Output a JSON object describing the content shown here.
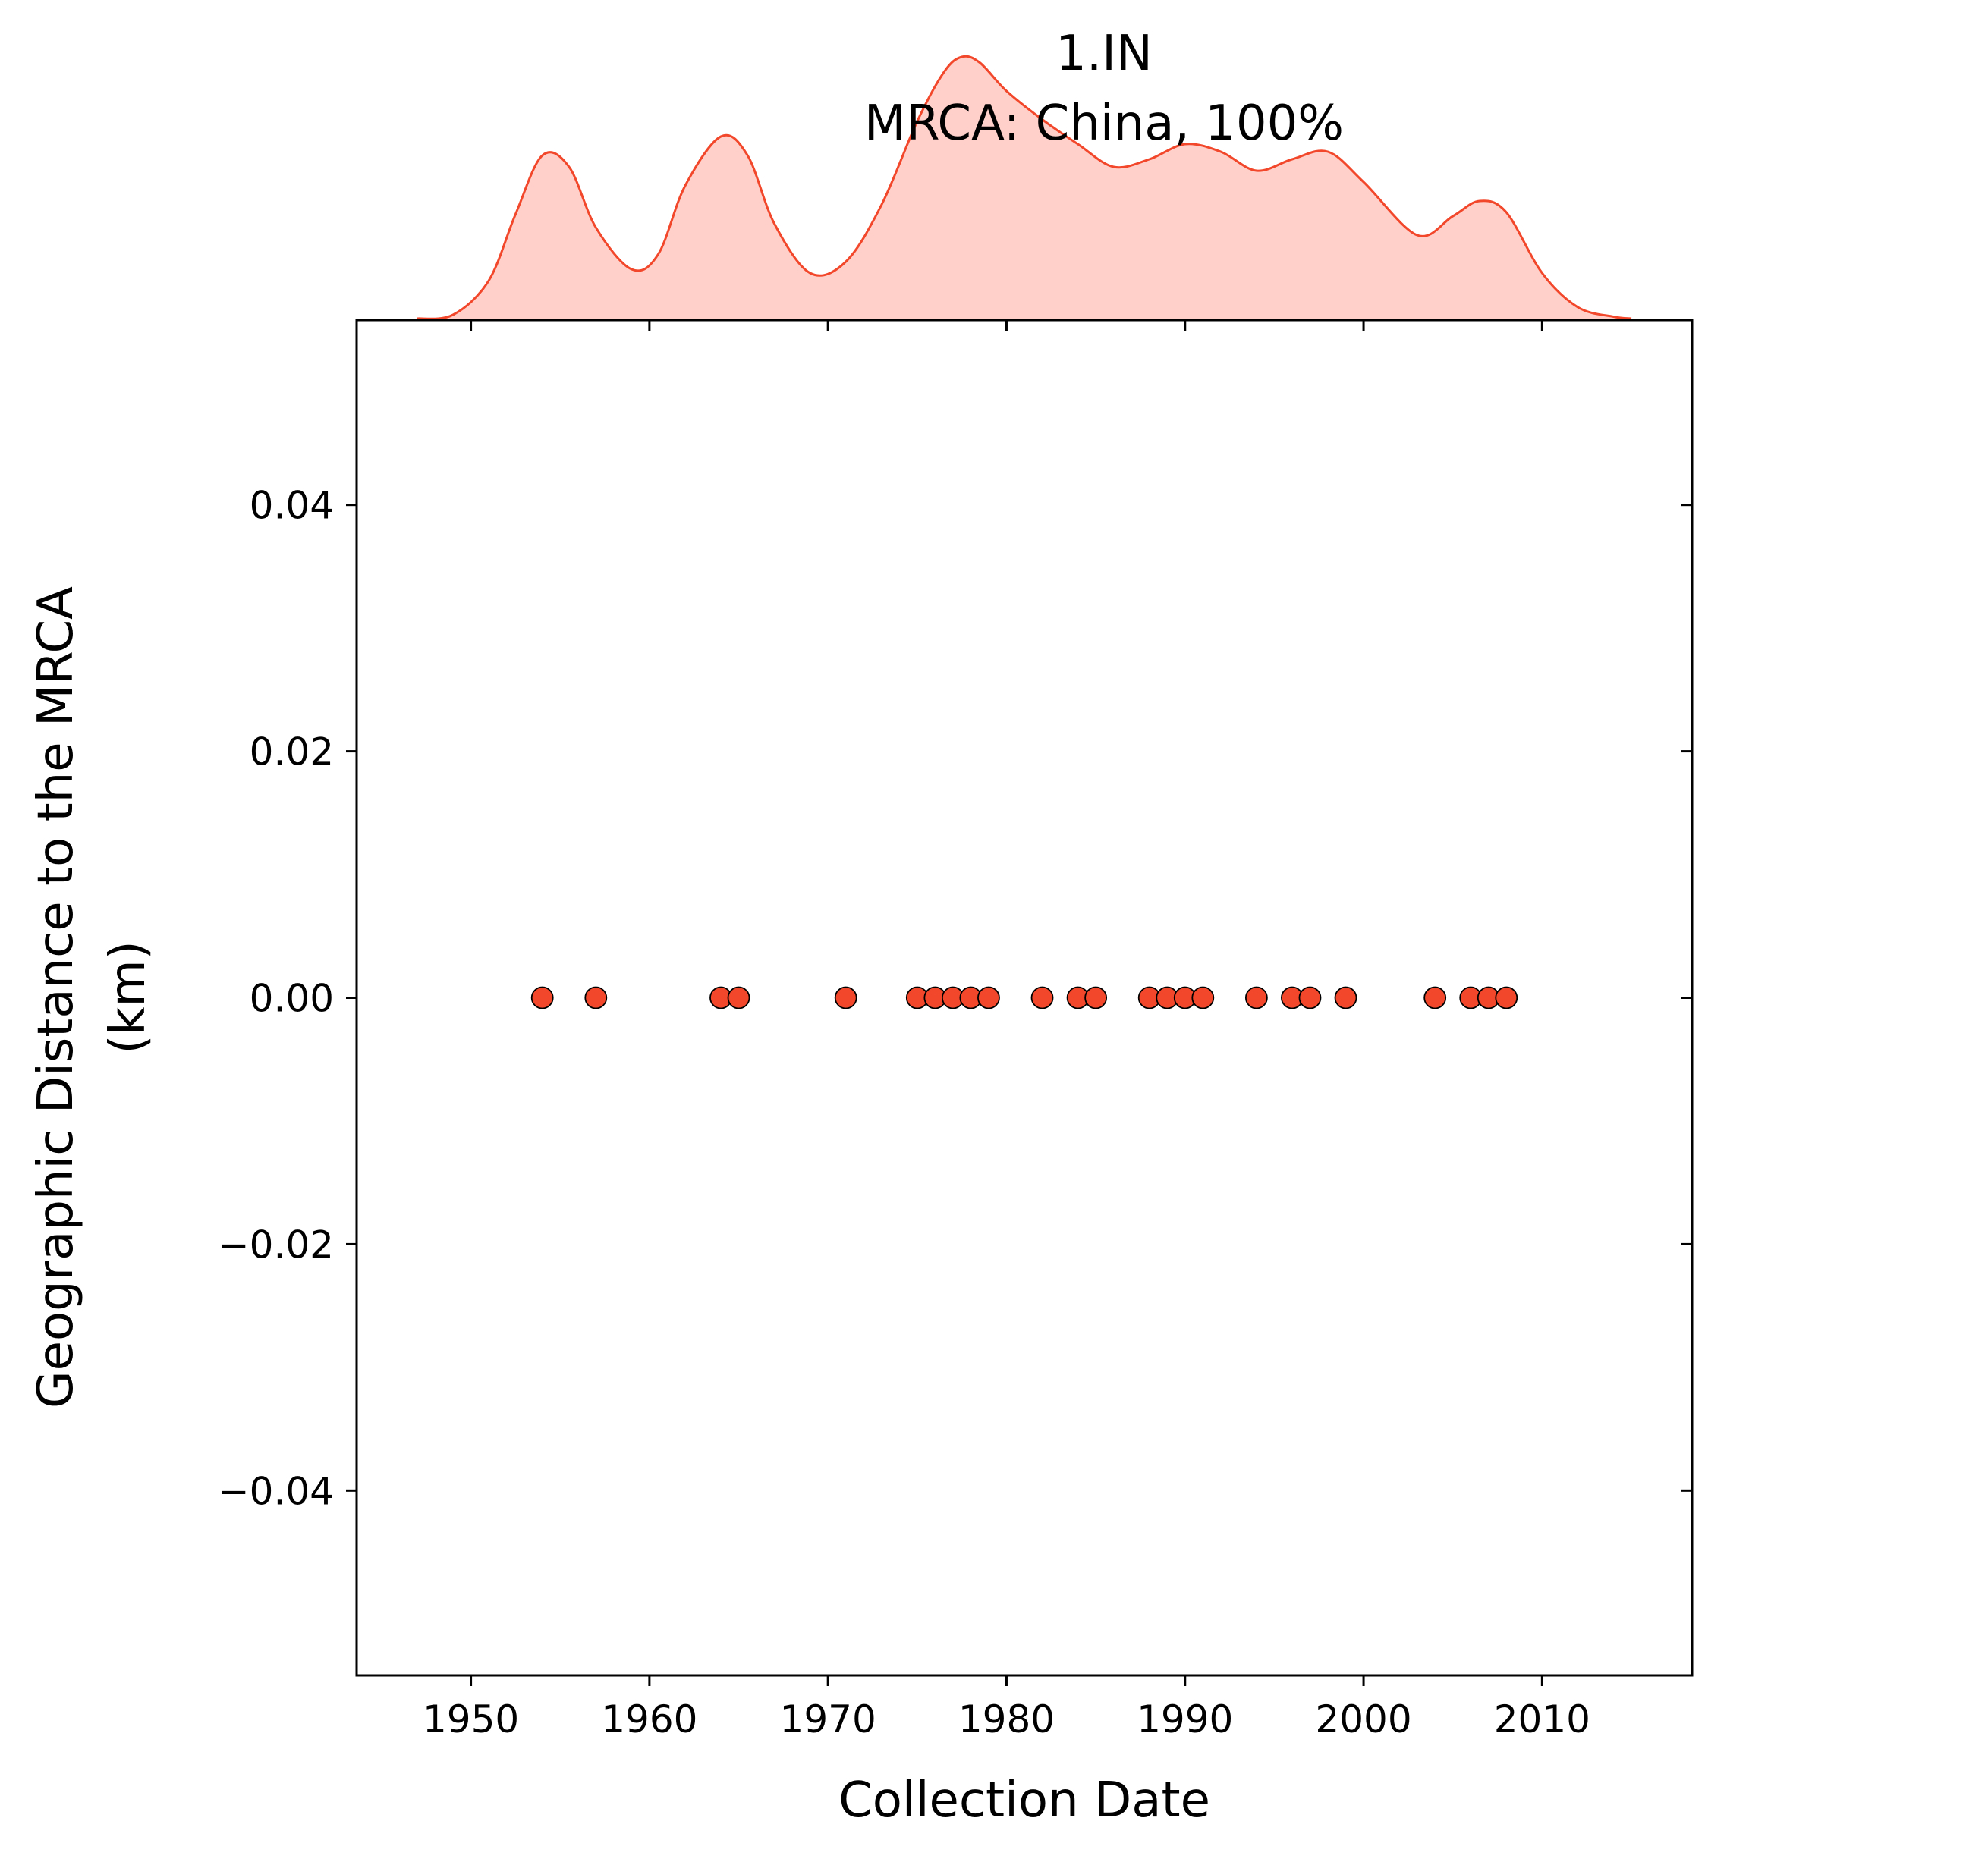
{
  "chart_data": {
    "type": "scatter",
    "title": "1.IN\nMRCA: China, 100%",
    "title_lines": [
      "1.IN",
      "MRCA: China, 100%"
    ],
    "xlabel": "Collection Date",
    "ylabel": "Geographic Distance to the MRCA\n(km)",
    "ylabel_lines": [
      "Geographic Distance to the MRCA",
      "(km)"
    ],
    "xlim": [
      1943.6,
      2018.4
    ],
    "ylim": [
      -0.055,
      0.055
    ],
    "xticks": [
      1950,
      1960,
      1970,
      1980,
      1990,
      2000,
      2010
    ],
    "xtick_labels": [
      "1950",
      "1960",
      "1970",
      "1980",
      "1990",
      "2000",
      "2010"
    ],
    "yticks": [
      0.04,
      0.02,
      0.0,
      -0.02,
      -0.04
    ],
    "ytick_labels": [
      "0.04",
      "0.02",
      "0.00",
      "−0.02",
      "−0.04"
    ],
    "grid": false,
    "point_color": "#f2472a",
    "kde_line_color": "#f2472a",
    "kde_fill_color": "#ffd0ca",
    "series": [
      {
        "x": [
          1954,
          1957,
          1964,
          1965,
          1971,
          1975,
          1976,
          1977,
          1978,
          1979,
          1982,
          1984,
          1985,
          1988,
          1989,
          1990,
          1991,
          1994,
          1996,
          1997,
          1999,
          2004,
          2006,
          2007,
          2008
        ],
        "y": [
          0,
          0,
          0,
          0,
          0,
          0,
          0,
          0,
          0,
          0,
          0,
          0,
          0,
          0,
          0,
          0,
          0,
          0,
          0,
          0,
          0,
          0,
          0,
          0,
          0
        ]
      }
    ],
    "marginal_kde": {
      "x": [
        1947.0,
        1949.0,
        1951.0,
        1952.5,
        1954.0,
        1955.5,
        1957.0,
        1959.0,
        1960.5,
        1962.0,
        1964.0,
        1965.5,
        1967.0,
        1969.0,
        1971.0,
        1973.0,
        1975.0,
        1976.5,
        1977.5,
        1978.5,
        1980.0,
        1982.0,
        1984.0,
        1986.0,
        1988.0,
        1990.0,
        1992.0,
        1994.0,
        1996.0,
        1998.0,
        2000.0,
        2003.0,
        2005.0,
        2006.5,
        2008.0,
        2010.0,
        2012.0,
        2014.0,
        2015.0
      ],
      "density": [
        0.0,
        0.02,
        0.2,
        0.55,
        0.86,
        0.8,
        0.48,
        0.26,
        0.34,
        0.7,
        0.96,
        0.86,
        0.5,
        0.24,
        0.3,
        0.6,
        1.04,
        1.3,
        1.38,
        1.35,
        1.2,
        1.05,
        0.92,
        0.8,
        0.84,
        0.92,
        0.88,
        0.78,
        0.84,
        0.88,
        0.72,
        0.44,
        0.54,
        0.62,
        0.56,
        0.24,
        0.06,
        0.01,
        0.0
      ]
    }
  }
}
